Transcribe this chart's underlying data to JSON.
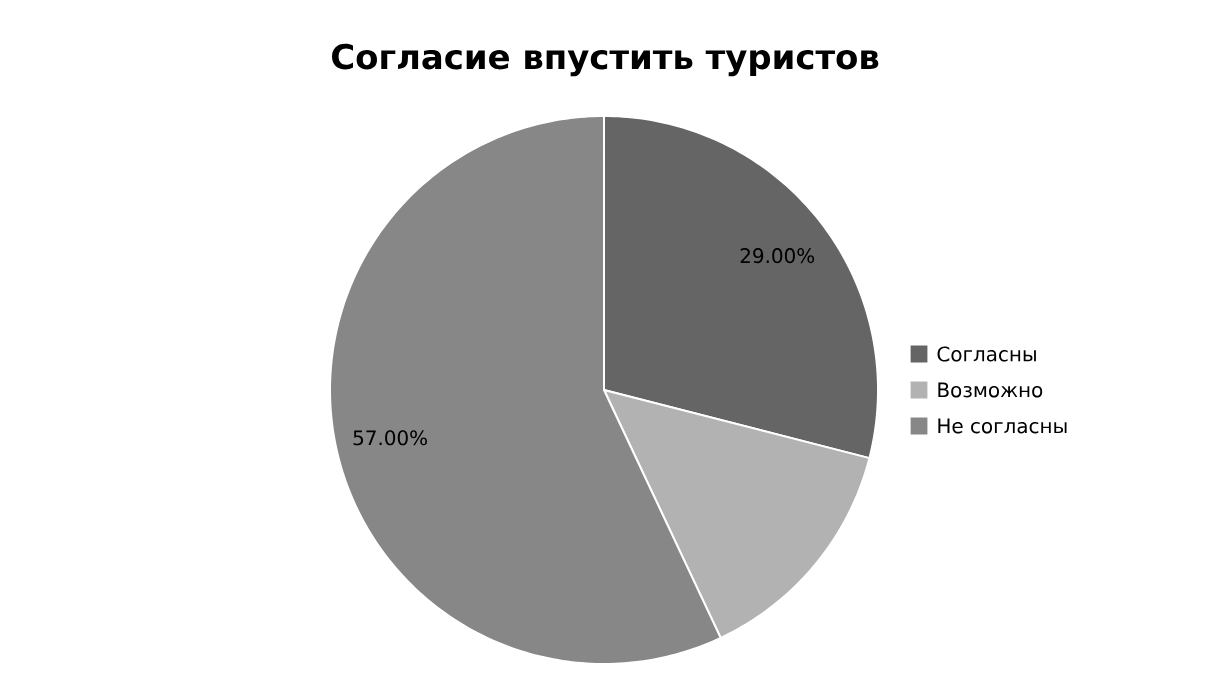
{
  "chart_data": {
    "type": "pie",
    "title": "Согласие впустить туристов",
    "categories": [
      "Согласны",
      "Возможно",
      "Не согласны"
    ],
    "values": [
      29,
      14,
      57
    ],
    "colors": [
      "#656565",
      "#b2b2b2",
      "#878787"
    ],
    "value_labels": [
      "29.00%",
      null,
      "57.00%"
    ],
    "legend": "right"
  }
}
